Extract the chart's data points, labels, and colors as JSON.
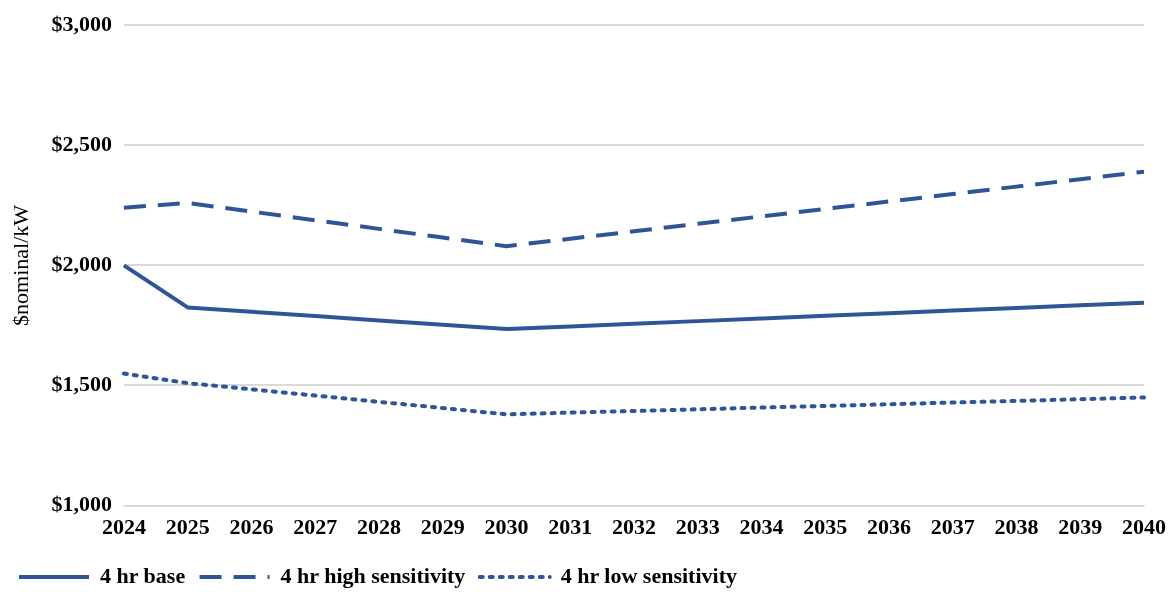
{
  "chart_data": {
    "type": "line",
    "ylabel": "$nominal/kW",
    "categories": [
      "2024",
      "2025",
      "2026",
      "2027",
      "2028",
      "2029",
      "2030",
      "2031",
      "2032",
      "2033",
      "2034",
      "2035",
      "2036",
      "2037",
      "2038",
      "2039",
      "2040"
    ],
    "series": [
      {
        "name": "4 hr base",
        "color": "#2f5597",
        "line_style": "solid",
        "values": [
          2000,
          1825,
          1807,
          1789,
          1771,
          1753,
          1735,
          1746,
          1757,
          1768,
          1779,
          1790,
          1801,
          1812,
          1823,
          1834,
          1845
        ]
      },
      {
        "name": "4 hr high sensitivity",
        "color": "#2f5597",
        "line_style": "dashed",
        "values": [
          2240,
          2260,
          2224,
          2188,
          2152,
          2116,
          2080,
          2111,
          2142,
          2173,
          2204,
          2235,
          2266,
          2297,
          2328,
          2359,
          2390
        ]
      },
      {
        "name": "4 hr low sensitivity",
        "color": "#2f5597",
        "line_style": "dotted",
        "values": [
          1550,
          1510,
          1484,
          1458,
          1432,
          1406,
          1380,
          1387,
          1394,
          1401,
          1408,
          1415,
          1422,
          1429,
          1436,
          1443,
          1450
        ]
      }
    ],
    "ylim": [
      1000,
      3000
    ],
    "yticks": [
      {
        "value": 1000,
        "label": "$1,000"
      },
      {
        "value": 1500,
        "label": "$1,500"
      },
      {
        "value": 2000,
        "label": "$2,000"
      },
      {
        "value": 2500,
        "label": "$2,500"
      },
      {
        "value": 3000,
        "label": "$3,000"
      }
    ],
    "grid": "y",
    "legend": "bottom",
    "marker": "none"
  }
}
